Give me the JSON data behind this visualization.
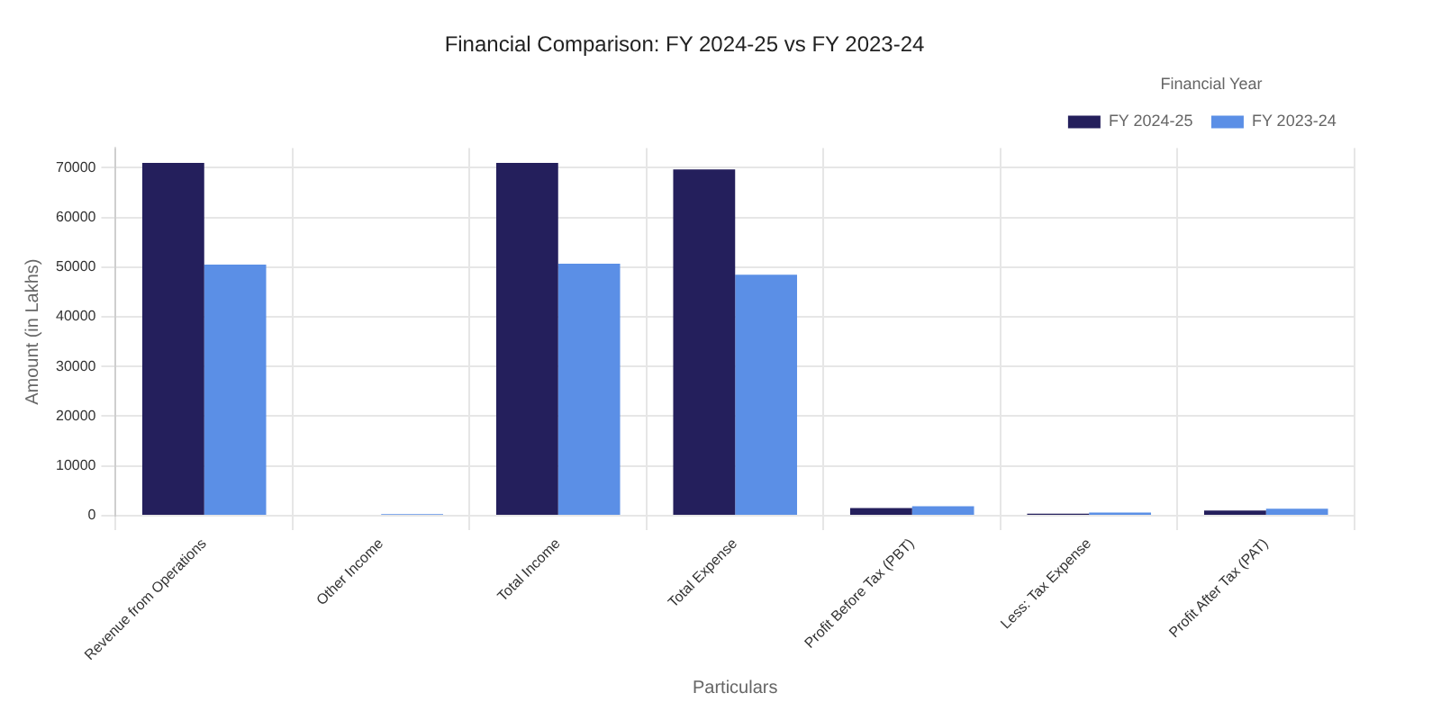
{
  "chart_data": {
    "type": "bar",
    "title": "Financial Comparison: FY 2024-25 vs FY 2023-24",
    "xlabel": "Particulars",
    "ylabel": "Amount (in Lakhs)",
    "legend_title": "Financial Year",
    "categories": [
      "Revenue from Operations",
      "Other Income",
      "Total Income",
      "Total Expense",
      "Profit Before Tax (PBT)",
      "Less: Tax Expense",
      "Profit After Tax (PAT)"
    ],
    "series": [
      {
        "name": "FY 2024-25",
        "color": "#241f5c",
        "values": [
          71000,
          0,
          71000,
          69700,
          1500,
          400,
          1000
        ]
      },
      {
        "name": "FY 2023-24",
        "color": "#5b8fe6",
        "values": [
          50500,
          300,
          50700,
          48500,
          1900,
          600,
          1400
        ]
      }
    ],
    "ylim": [
      0,
      74000
    ],
    "yticks": [
      0,
      10000,
      20000,
      30000,
      40000,
      50000,
      60000,
      70000
    ],
    "grid": true,
    "legend": "top right"
  }
}
